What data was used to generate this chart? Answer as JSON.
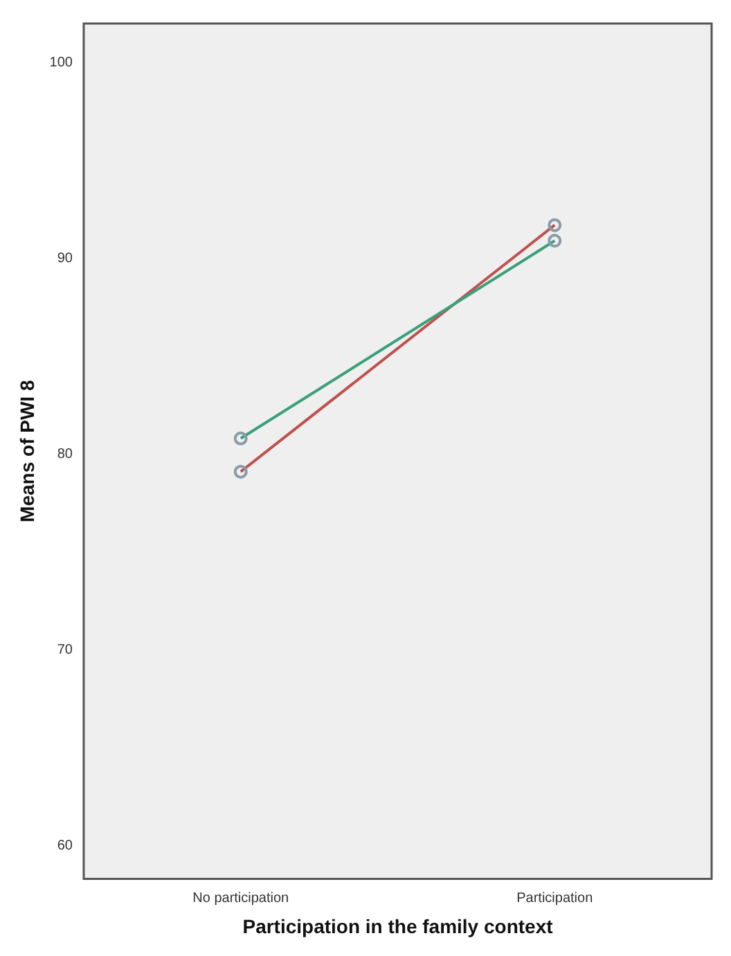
{
  "chart_data": {
    "type": "line",
    "xlabel": "Participation in the family context",
    "ylabel": "Means of PWI 8",
    "categories": [
      "No participation",
      "Participation"
    ],
    "series": [
      {
        "color": "#3aa07a",
        "values": [
          80.8,
          90.9
        ]
      },
      {
        "color": "#c0504d",
        "values": [
          79.1,
          91.7
        ]
      }
    ],
    "ylim": [
      58.3,
      102
    ],
    "yticks": [
      60,
      70,
      80,
      90,
      100
    ],
    "grid": false,
    "legend": false,
    "marker": "circle",
    "line_style": "solid"
  }
}
